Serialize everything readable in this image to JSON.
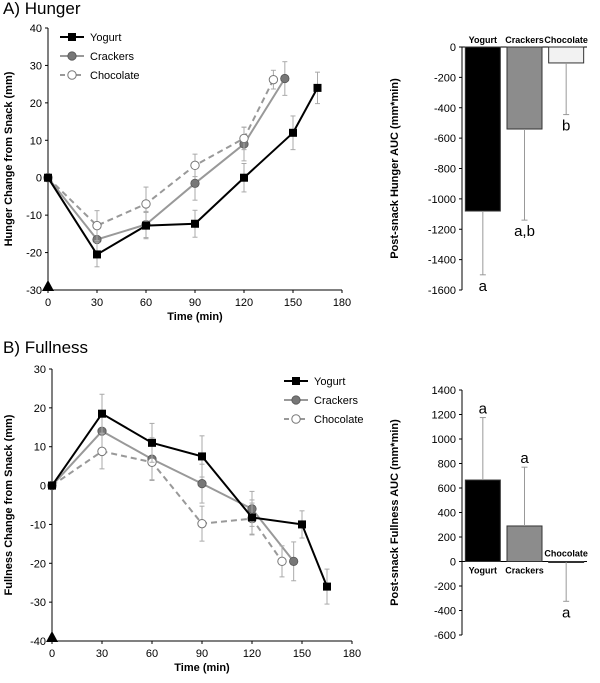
{
  "figure": {
    "panel_a_title": "A) Hunger",
    "panel_b_title": "B) Fullness"
  },
  "chart_data": [
    {
      "id": "hunger_line",
      "type": "line",
      "xlabel": "Time (min)",
      "ylabel": "Hunger Change from Snack (mm)",
      "xlim": [
        0,
        180
      ],
      "ylim": [
        -30,
        40
      ],
      "xticks": [
        0,
        30,
        60,
        90,
        120,
        150,
        180
      ],
      "yticks": [
        -30,
        -20,
        -10,
        0,
        10,
        20,
        30,
        40
      ],
      "legend_position": "top-left",
      "series": [
        {
          "name": "Yogurt",
          "marker": "square",
          "line": "solid",
          "color": "#000000",
          "x": [
            0,
            30,
            60,
            90,
            120,
            150,
            165
          ],
          "y": [
            0,
            -20.5,
            -12.8,
            -12.3,
            0,
            12,
            24
          ],
          "err": [
            0,
            3.3,
            3.5,
            3.6,
            3.8,
            4.5,
            4.2
          ]
        },
        {
          "name": "Crackers",
          "marker": "circle-filled",
          "line": "solid",
          "color": "#999999",
          "x": [
            0,
            30,
            60,
            90,
            120,
            145
          ],
          "y": [
            0,
            -16.5,
            -12.5,
            -1.5,
            9,
            26.5
          ],
          "err": [
            0,
            4.0,
            3.5,
            4.5,
            4.5,
            4.5
          ]
        },
        {
          "name": "Chocolate",
          "marker": "circle-open",
          "line": "dashed",
          "color": "#999999",
          "x": [
            0,
            30,
            60,
            90,
            120,
            138
          ],
          "y": [
            0,
            -12.8,
            -7,
            3.3,
            10.5,
            26.2
          ],
          "err": [
            0,
            4.0,
            4.5,
            3.0,
            3.0,
            2.5
          ]
        }
      ]
    },
    {
      "id": "hunger_auc",
      "type": "bar",
      "ylabel": "Post-snack Hunger AUC (mm*min)",
      "ylim": [
        -1600,
        0
      ],
      "yticks": [
        0,
        -200,
        -400,
        -600,
        -800,
        -1000,
        -1200,
        -1400,
        -1600
      ],
      "categories": [
        "Yogurt",
        "Crackers",
        "Chocolate"
      ],
      "values": [
        -1080,
        -540,
        -105
      ],
      "errors": [
        420,
        600,
        340
      ],
      "colors": [
        "#000000",
        "#8c8c8c",
        "#f2f2f2"
      ],
      "sig_labels": [
        "a",
        "a,b",
        "b"
      ]
    },
    {
      "id": "fullness_line",
      "type": "line",
      "xlabel": "Time (min)",
      "ylabel": "Fullness Change from Snack (mm)",
      "xlim": [
        0,
        180
      ],
      "ylim": [
        -40,
        30
      ],
      "xticks": [
        0,
        30,
        60,
        90,
        120,
        150,
        180
      ],
      "yticks": [
        -40,
        -30,
        -20,
        -10,
        0,
        10,
        20,
        30
      ],
      "legend_position": "top-right",
      "series": [
        {
          "name": "Yogurt",
          "marker": "square",
          "line": "solid",
          "color": "#000000",
          "x": [
            0,
            30,
            60,
            90,
            120,
            150,
            165
          ],
          "y": [
            0,
            18.5,
            11,
            7.5,
            -8.2,
            -10,
            -26
          ],
          "err": [
            0,
            5.0,
            5.0,
            5.3,
            4.5,
            3.5,
            4.5
          ]
        },
        {
          "name": "Crackers",
          "marker": "circle-filled",
          "line": "solid",
          "color": "#999999",
          "x": [
            0,
            30,
            60,
            90,
            120,
            145
          ],
          "y": [
            0,
            14,
            6.8,
            0.5,
            -6,
            -19.5
          ],
          "err": [
            0,
            5.0,
            5.5,
            5.0,
            4.5,
            5.0
          ]
        },
        {
          "name": "Chocolate",
          "marker": "circle-open",
          "line": "dashed",
          "color": "#999999",
          "x": [
            0,
            30,
            60,
            90,
            120,
            138
          ],
          "y": [
            0,
            8.8,
            6,
            -9.8,
            -8.5,
            -19.5
          ],
          "err": [
            0,
            4.5,
            4.5,
            4.5,
            4.0,
            4.0
          ]
        }
      ]
    },
    {
      "id": "fullness_auc",
      "type": "bar",
      "ylabel": "Post-snack Fullness AUC (mm*min)",
      "ylim": [
        -600,
        1400
      ],
      "yticks": [
        1400,
        1200,
        1000,
        800,
        600,
        400,
        200,
        0,
        -200,
        -400,
        -600
      ],
      "categories": [
        "Yogurt",
        "Crackers",
        "Chocolate"
      ],
      "values": [
        665,
        290,
        -5
      ],
      "errors": [
        510,
        480,
        320
      ],
      "colors": [
        "#000000",
        "#8c8c8c",
        "#f2f2f2"
      ],
      "sig_labels": [
        "a",
        "a",
        "a"
      ]
    }
  ]
}
